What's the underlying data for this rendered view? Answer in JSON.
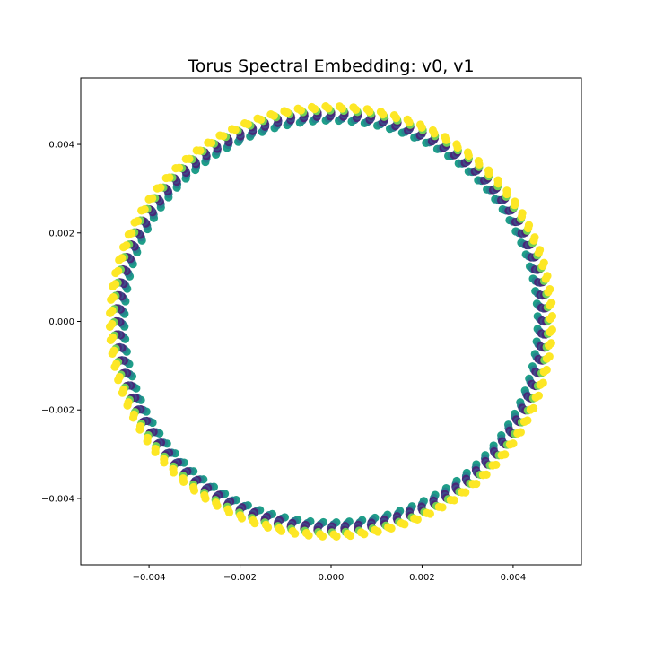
{
  "chart_data": {
    "type": "scatter",
    "title": "Torus Spectral Embedding: v0, v1",
    "xlabel": "",
    "ylabel": "",
    "xlim": [
      -0.0055,
      0.0055
    ],
    "ylim": [
      -0.0055,
      0.0055
    ],
    "xticks": [
      -0.004,
      -0.002,
      0.0,
      0.002,
      0.004
    ],
    "yticks": [
      -0.004,
      -0.002,
      0.0,
      0.002,
      0.004
    ],
    "xtick_labels": [
      "−0.004",
      "−0.002",
      "0.000",
      "0.002",
      "0.004"
    ],
    "ytick_labels": [
      "0.004",
      "0.002",
      "0.000",
      "−0.002",
      "−0.004"
    ],
    "grid": false,
    "colormap": "viridis",
    "series": [
      {
        "structure": "ring of small clusters around the origin",
        "clusters": 100,
        "points_per_cluster": 8,
        "ring_radius": 0.0047,
        "radial_spread": 0.00032,
        "colors": [
          "#440154",
          "#482878",
          "#3e4989",
          "#31688e",
          "#26828e",
          "#1f9e89",
          "#6ece58",
          "#fde725"
        ]
      }
    ]
  }
}
